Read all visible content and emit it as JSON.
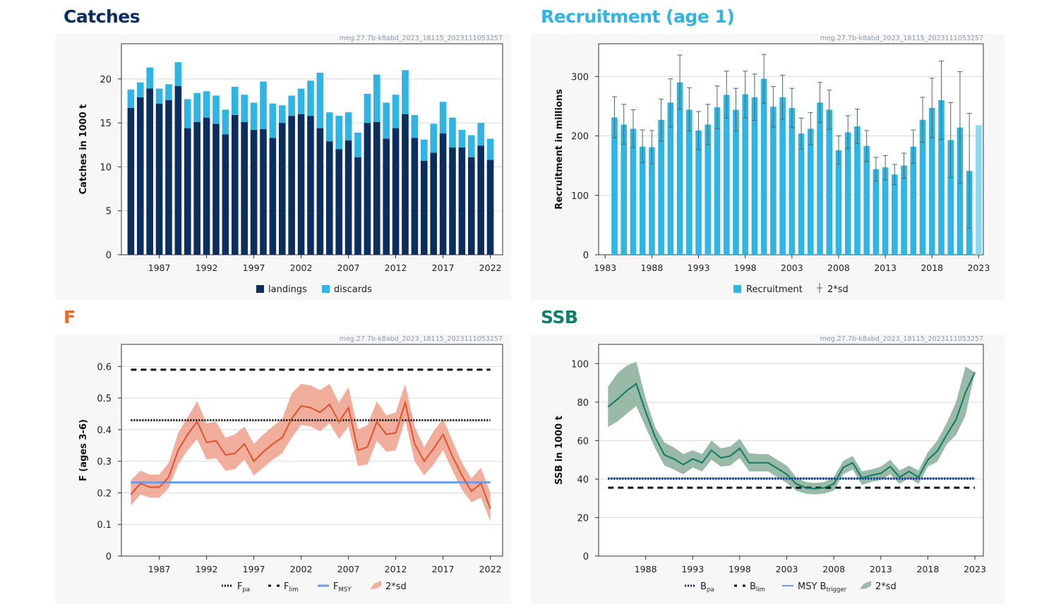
{
  "source_id": "meg.27.7b-k8abd_2023_18115_2023111053257",
  "colors": {
    "catches_title": "#0b2e5e",
    "recruitment_title": "#30b4e3",
    "f_title": "#e96a2e",
    "ssb_title": "#107c6a",
    "landings": "#0b2e5e",
    "discards": "#30b4e3",
    "recruitment": "#30b4e3",
    "recruitment_last": "#8fd8f3",
    "f_line": "#e0522c",
    "f_band": "#f0a08c",
    "fmsy": "#6c9cef",
    "ssb_line": "#0e7a66",
    "ssb_band": "#8fb39f",
    "msy_btrigger": "#6c9cef",
    "msy_btrigger_dots": "#0b2e5e"
  },
  "chart_data": [
    {
      "id": "catches",
      "type": "bar",
      "title": "Catches",
      "ylabel": "Catches in 1000 t",
      "ylim": [
        0,
        24
      ],
      "xlim": [
        1983,
        2023.3
      ],
      "yticks": [
        0,
        5,
        10,
        15,
        20
      ],
      "xticks": [
        1987,
        1992,
        1997,
        2002,
        2007,
        2012,
        2017,
        2022
      ],
      "stacked": true,
      "x": [
        1984,
        1985,
        1986,
        1987,
        1988,
        1989,
        1990,
        1991,
        1992,
        1993,
        1994,
        1995,
        1996,
        1997,
        1998,
        1999,
        2000,
        2001,
        2002,
        2003,
        2004,
        2005,
        2006,
        2007,
        2008,
        2009,
        2010,
        2011,
        2012,
        2013,
        2014,
        2015,
        2016,
        2017,
        2018,
        2019,
        2020,
        2021,
        2022
      ],
      "series": [
        {
          "name": "landings",
          "values": [
            16.7,
            17.9,
            18.9,
            17.2,
            17.6,
            19.2,
            14.4,
            15.1,
            15.6,
            14.9,
            13.7,
            15.9,
            15.1,
            14.2,
            14.3,
            13.3,
            15.0,
            15.8,
            16.0,
            15.8,
            14.4,
            12.9,
            12.0,
            13.0,
            11.1,
            15.0,
            15.1,
            13.2,
            14.4,
            16.0,
            13.3,
            10.7,
            11.6,
            13.8,
            12.2,
            12.2,
            11.1,
            12.4,
            10.8
          ]
        },
        {
          "name": "discards",
          "values": [
            2.1,
            1.7,
            2.4,
            1.7,
            1.8,
            2.7,
            3.3,
            3.3,
            3.0,
            3.2,
            2.8,
            3.2,
            3.1,
            3.1,
            5.4,
            3.9,
            2.0,
            2.3,
            2.9,
            4.0,
            6.3,
            3.3,
            3.8,
            3.2,
            2.8,
            3.3,
            5.4,
            4.1,
            3.8,
            5.0,
            2.6,
            2.4,
            3.3,
            3.6,
            3.4,
            2.0,
            2.5,
            2.6,
            2.4
          ]
        }
      ],
      "legend": [
        {
          "key": "landings",
          "label": "landings"
        },
        {
          "key": "discards",
          "label": "discards"
        }
      ],
      "legend_position": "bottom"
    },
    {
      "id": "recruitment",
      "type": "bar",
      "title": "Recruitment (age 1)",
      "ylabel": "Recruitment in millions",
      "ylim": [
        0,
        355
      ],
      "xlim": [
        1982.3,
        2023.5
      ],
      "yticks": [
        0,
        100,
        200,
        300
      ],
      "xticks": [
        1983,
        1988,
        1993,
        1998,
        2003,
        2008,
        2013,
        2018,
        2023
      ],
      "x": [
        1984,
        1985,
        1986,
        1987,
        1988,
        1989,
        1990,
        1991,
        1992,
        1993,
        1994,
        1995,
        1996,
        1997,
        1998,
        1999,
        2000,
        2001,
        2002,
        2003,
        2004,
        2005,
        2006,
        2007,
        2008,
        2009,
        2010,
        2011,
        2012,
        2013,
        2014,
        2015,
        2016,
        2017,
        2018,
        2019,
        2020,
        2021,
        2022,
        2023
      ],
      "values": [
        231,
        219,
        212,
        182,
        181,
        227,
        256,
        290,
        244,
        209,
        219,
        248,
        269,
        244,
        270,
        265,
        296,
        249,
        265,
        247,
        204,
        212,
        256,
        244,
        176,
        206,
        216,
        183,
        144,
        147,
        135,
        150,
        182,
        227,
        247,
        260,
        193,
        214,
        141,
        218
      ],
      "upper": [
        266,
        253,
        244,
        210,
        209,
        262,
        296,
        336,
        281,
        241,
        253,
        284,
        309,
        280,
        309,
        304,
        337,
        283,
        302,
        280,
        230,
        239,
        290,
        277,
        200,
        234,
        245,
        209,
        164,
        167,
        152,
        171,
        210,
        265,
        297,
        326,
        256,
        308,
        238,
        null
      ],
      "lower": [
        197,
        186,
        180,
        155,
        153,
        191,
        215,
        245,
        208,
        177,
        185,
        212,
        230,
        208,
        230,
        226,
        255,
        215,
        228,
        214,
        178,
        185,
        223,
        211,
        152,
        179,
        187,
        157,
        124,
        126,
        118,
        129,
        154,
        189,
        197,
        194,
        130,
        120,
        45,
        null
      ],
      "legend": [
        {
          "key": "recruitment",
          "label": "Recruitment"
        },
        {
          "key": "sd",
          "label": "2*sd"
        }
      ],
      "legend_position": "bottom"
    },
    {
      "id": "f",
      "type": "line",
      "title": "F",
      "ylabel": "F (ages 3-6)",
      "ylim": [
        0,
        0.67
      ],
      "xlim": [
        1983,
        2023.3
      ],
      "yticks": [
        0,
        0.1,
        0.2,
        0.3,
        0.4,
        0.5,
        0.6
      ],
      "ytick_labels": [
        "0",
        "0.1",
        "0.2",
        "0.3",
        "0.4",
        "0.5",
        "0.6"
      ],
      "xticks": [
        1987,
        1992,
        1997,
        2002,
        2007,
        2012,
        2017,
        2022
      ],
      "x": [
        1984,
        1985,
        1986,
        1987,
        1988,
        1989,
        1990,
        1991,
        1992,
        1993,
        1994,
        1995,
        1996,
        1997,
        1998,
        1999,
        2000,
        2001,
        2002,
        2003,
        2004,
        2005,
        2006,
        2007,
        2008,
        2009,
        2010,
        2011,
        2012,
        2013,
        2014,
        2015,
        2016,
        2017,
        2018,
        2019,
        2020,
        2021,
        2022
      ],
      "values": [
        0.195,
        0.23,
        0.218,
        0.218,
        0.25,
        0.335,
        0.385,
        0.425,
        0.36,
        0.365,
        0.32,
        0.325,
        0.355,
        0.3,
        0.33,
        0.355,
        0.375,
        0.435,
        0.475,
        0.47,
        0.455,
        0.48,
        0.425,
        0.47,
        0.335,
        0.345,
        0.425,
        0.385,
        0.39,
        0.485,
        0.355,
        0.3,
        0.34,
        0.385,
        0.315,
        0.255,
        0.205,
        0.23,
        0.15
      ],
      "upper": [
        0.24,
        0.27,
        0.258,
        0.258,
        0.295,
        0.39,
        0.44,
        0.49,
        0.42,
        0.425,
        0.375,
        0.385,
        0.41,
        0.355,
        0.385,
        0.41,
        0.435,
        0.515,
        0.545,
        0.54,
        0.525,
        0.545,
        0.485,
        0.535,
        0.4,
        0.415,
        0.49,
        0.445,
        0.455,
        0.545,
        0.41,
        0.345,
        0.395,
        0.435,
        0.365,
        0.295,
        0.245,
        0.28,
        0.2
      ],
      "lower": [
        0.16,
        0.195,
        0.185,
        0.185,
        0.215,
        0.29,
        0.335,
        0.37,
        0.305,
        0.31,
        0.27,
        0.275,
        0.305,
        0.255,
        0.28,
        0.305,
        0.325,
        0.375,
        0.415,
        0.41,
        0.395,
        0.42,
        0.37,
        0.41,
        0.285,
        0.29,
        0.365,
        0.33,
        0.335,
        0.43,
        0.3,
        0.255,
        0.29,
        0.335,
        0.27,
        0.21,
        0.17,
        0.185,
        0.11
      ],
      "reference_lines": [
        {
          "key": "fpa",
          "value": 0.43,
          "style": "dotted"
        },
        {
          "key": "flim",
          "value": 0.59,
          "style": "dashed"
        },
        {
          "key": "fmsy",
          "value": 0.233,
          "style": "solid"
        }
      ],
      "ref_x_range": [
        1984,
        2022
      ],
      "legend": [
        {
          "key": "fpa",
          "label": "F",
          "sub": "pa"
        },
        {
          "key": "flim",
          "label": "F",
          "sub": "lim"
        },
        {
          "key": "fmsy",
          "label": "F",
          "sub": "MSY"
        },
        {
          "key": "sd",
          "label": "2*sd",
          "sub": ""
        }
      ],
      "legend_position": "bottom"
    },
    {
      "id": "ssb",
      "type": "line",
      "title": "SSB",
      "ylabel": "SSB in 1000 t",
      "ylim": [
        0,
        110
      ],
      "xlim": [
        1983,
        2023.9
      ],
      "yticks": [
        0,
        20,
        40,
        60,
        80,
        100
      ],
      "xticks": [
        1988,
        1993,
        1998,
        2003,
        2008,
        2013,
        2018,
        2023
      ],
      "x": [
        1984,
        1985,
        1986,
        1987,
        1988,
        1989,
        1990,
        1991,
        1992,
        1993,
        1994,
        1995,
        1996,
        1997,
        1998,
        1999,
        2000,
        2001,
        2002,
        2003,
        2004,
        2005,
        2006,
        2007,
        2008,
        2009,
        2010,
        2011,
        2012,
        2013,
        2014,
        2015,
        2016,
        2017,
        2018,
        2019,
        2020,
        2021,
        2022,
        2023
      ],
      "values": [
        77.5,
        81.5,
        86,
        89.5,
        75,
        62,
        52.5,
        50.5,
        47.5,
        50.5,
        48.5,
        55,
        51,
        52,
        56,
        48.5,
        48.5,
        48.5,
        45.5,
        42.5,
        37.5,
        35.5,
        35,
        35.5,
        37.5,
        46,
        48.5,
        40.5,
        42,
        43,
        46.5,
        41,
        44,
        41,
        50,
        54.5,
        63,
        71,
        85,
        95.5
      ],
      "upper": [
        88,
        95,
        99,
        101,
        82,
        67,
        59,
        56.5,
        53,
        55,
        53,
        60,
        56,
        57,
        61,
        53.5,
        53,
        53,
        50,
        47,
        41,
        38.5,
        38,
        38.5,
        41,
        49.5,
        52,
        44,
        45,
        46.5,
        50,
        44.5,
        47,
        44.5,
        54,
        60,
        69,
        80,
        98.5,
        null
      ],
      "lower": [
        67,
        70,
        74,
        78,
        67,
        56,
        47,
        45,
        42.5,
        46,
        44,
        50,
        46.5,
        47,
        51,
        44,
        44,
        44,
        41,
        38,
        34,
        32.5,
        32,
        32.5,
        34,
        42.5,
        45,
        37,
        38.5,
        39.5,
        42.5,
        37.5,
        40.5,
        37.5,
        46.5,
        49,
        58,
        63,
        73,
        null
      ],
      "reference_lines": [
        {
          "key": "bpa",
          "value": 40.3,
          "style": "dotted"
        },
        {
          "key": "blim",
          "value": 35.5,
          "style": "dashed"
        },
        {
          "key": "msy_btrigger",
          "value": 40.3,
          "style": "solid"
        }
      ],
      "ref_x_range": [
        1984,
        2023
      ],
      "legend": [
        {
          "key": "bpa",
          "label": "B",
          "sub": "pa"
        },
        {
          "key": "blim",
          "label": "B",
          "sub": "lim"
        },
        {
          "key": "msy_btrigger",
          "label": "MSY B",
          "sub": "trigger"
        },
        {
          "key": "sd",
          "label": "2*sd",
          "sub": ""
        }
      ],
      "legend_position": "bottom"
    }
  ]
}
